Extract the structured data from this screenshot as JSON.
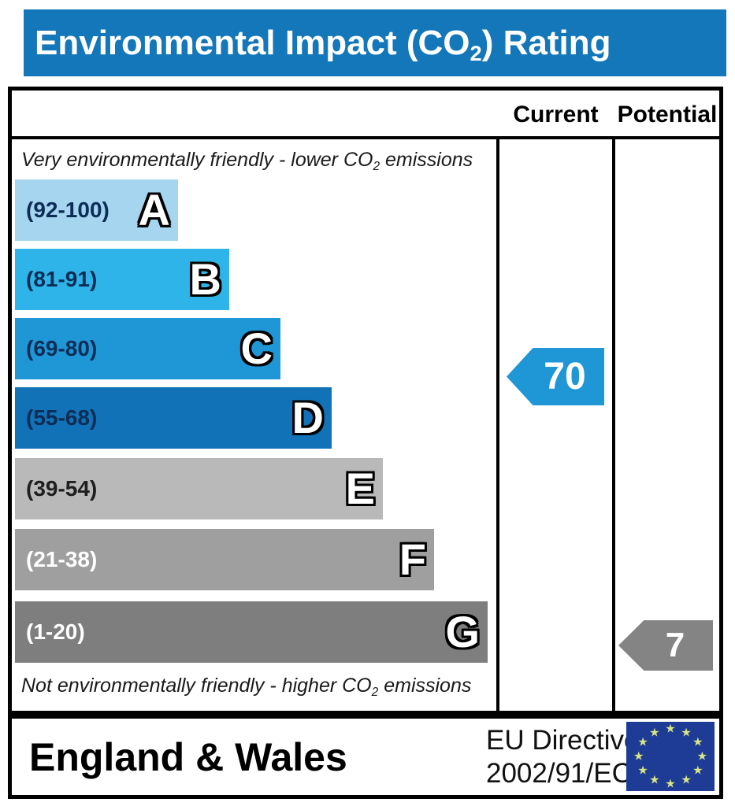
{
  "title": {
    "prefix": "Environmental Impact (CO",
    "sub": "2",
    "suffix": ") Rating"
  },
  "header": {
    "current": "Current",
    "potential": "Potential"
  },
  "captions": {
    "top": {
      "prefix": "Very environmentally friendly - lower CO",
      "sub": "2",
      "suffix": " emissions"
    },
    "bottom": {
      "prefix": "Not environmentally friendly - higher CO",
      "sub": "2",
      "suffix": " emissions"
    }
  },
  "chart_data": {
    "type": "bar",
    "title": "Environmental Impact (CO2) Rating",
    "scale_note": "EPC-style banded rating scale, values 1-100",
    "columns": [
      "Current",
      "Potential"
    ],
    "bands": [
      {
        "letter": "A",
        "range": "(92-100)",
        "min": 92,
        "max": 100,
        "color": "#a6d6ef",
        "label_color": "#0c2d55"
      },
      {
        "letter": "B",
        "range": "(81-91)",
        "min": 81,
        "max": 91,
        "color": "#2fb4e9",
        "label_color": "#0c2d55"
      },
      {
        "letter": "C",
        "range": "(69-80)",
        "min": 69,
        "max": 80,
        "color": "#1f97d6",
        "label_color": "#0c2d55"
      },
      {
        "letter": "D",
        "range": "(55-68)",
        "min": 55,
        "max": 68,
        "color": "#1272b8",
        "label_color": "#0c2d55"
      },
      {
        "letter": "E",
        "range": "(39-54)",
        "min": 39,
        "max": 54,
        "color": "#b9b9b9",
        "label_color": "#1f1f1f"
      },
      {
        "letter": "F",
        "range": "(21-38)",
        "min": 21,
        "max": 38,
        "color": "#9f9f9f",
        "label_color": "#ffffff"
      },
      {
        "letter": "G",
        "range": "(1-20)",
        "min": 1,
        "max": 20,
        "color": "#7e7e7e",
        "label_color": "#ffffff"
      }
    ],
    "current": {
      "value": 70,
      "band": "C",
      "color": "#1f97d6"
    },
    "potential": {
      "value": 7,
      "band": "G",
      "color": "#848484"
    }
  },
  "footer": {
    "region": "England & Wales",
    "directive": {
      "line1": "EU Directive",
      "line2": "2002/91/EC"
    },
    "eu_flag": {
      "background": "#1e3c95",
      "star_color": "#d7e584",
      "star_count": 12,
      "star_glyph": "★"
    }
  },
  "colors": {
    "title_bar": "#1377b9",
    "border": "#000000",
    "background": "#ffffff"
  }
}
